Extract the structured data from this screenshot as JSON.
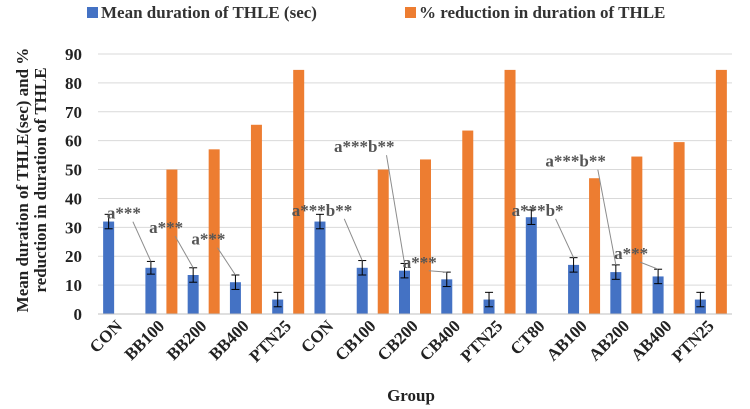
{
  "chart_data": {
    "type": "bar",
    "title": "",
    "xlabel": "Group",
    "ylabel_line1": "Mean duration of THLE(sec) and %",
    "ylabel_line2": "reduction in duration of THLE",
    "ylim": [
      0,
      90
    ],
    "yticks": [
      0,
      10,
      20,
      30,
      40,
      50,
      60,
      70,
      80,
      90
    ],
    "grid": true,
    "legend_position": "top",
    "categories": [
      "CON",
      "BB100",
      "BB200",
      "BB400",
      "PTN25",
      "CON",
      "CB100",
      "CB200",
      "CB400",
      "PTN25",
      "CT80",
      "AB100",
      "AB200",
      "AB400",
      "PTN25"
    ],
    "series": [
      {
        "name": "Mean duration of THLE (sec)",
        "color": "#4472c4",
        "values": [
          32,
          16,
          13.5,
          11,
          5,
          32,
          16,
          15,
          12,
          5,
          33.5,
          17,
          14.5,
          13,
          5
        ],
        "errors": [
          2.5,
          2.2,
          2.5,
          2.5,
          2.5,
          2.5,
          2.5,
          2.5,
          2.5,
          2.5,
          2.5,
          2.5,
          2.5,
          2.5,
          2.5
        ]
      },
      {
        "name": "% reduction in duration of THLE",
        "color": "#ed7d31",
        "values": [
          null,
          50,
          57,
          65.5,
          84.5,
          null,
          50,
          53.5,
          63.5,
          84.5,
          null,
          47,
          54.5,
          59.5,
          84.5
        ]
      }
    ],
    "annotations": [
      {
        "text": "a***",
        "category_index": 1,
        "label_value": 33
      },
      {
        "text": "a***",
        "category_index": 2,
        "label_value": 28
      },
      {
        "text": "a***",
        "category_index": 3,
        "label_value": 24
      },
      {
        "text": "a***b**",
        "category_index": 6,
        "label_value": 34
      },
      {
        "text": "a***b**",
        "category_index": 7,
        "label_value": 56
      },
      {
        "text": "a***",
        "category_index": 8,
        "label_value": 16
      },
      {
        "text": "a***b*",
        "category_index": 11,
        "label_value": 34
      },
      {
        "text": "a***b**",
        "category_index": 12,
        "label_value": 51
      },
      {
        "text": "a***",
        "category_index": 13,
        "label_value": 19
      }
    ]
  }
}
